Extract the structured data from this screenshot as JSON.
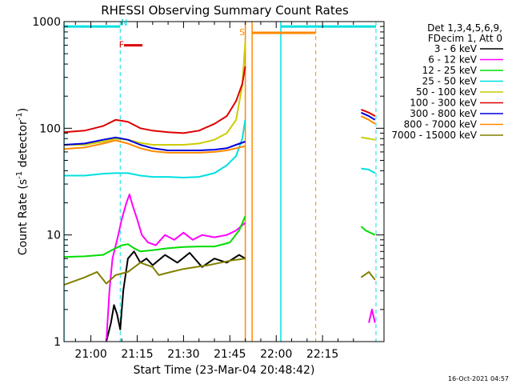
{
  "chart_data": {
    "type": "line",
    "title": "RHESSI Observing Summary Count Rates",
    "xlabel": "Start Time (23-Mar-04 20:48:42)",
    "ylabel_main": "Count Rate (s",
    "ylabel_exp1": "-1",
    "ylabel_mid": " detector",
    "ylabel_exp2": "-1",
    "ylabel_end": ")",
    "yscale": "log",
    "ylim": [
      1,
      1000
    ],
    "xlim_minutes": [
      -8.7,
      94.9
    ],
    "x_tick_minutes": [
      0,
      15,
      30,
      45,
      60,
      75
    ],
    "x_tick_labels": [
      "21:00",
      "21:15",
      "21:30",
      "21:45",
      "22:00",
      "22:15"
    ],
    "y_tick_values": [
      1,
      10,
      100,
      1000
    ],
    "y_tick_labels": [
      "1",
      "10",
      "100",
      "1000"
    ],
    "timestamp": "16-Oct-2021 04:57",
    "legend": {
      "header1": "Det 1,3,4,5,6,9,",
      "header2": "FDecim 1, Att 0",
      "entries": [
        {
          "label": "3 - 6 keV",
          "color": "#000000"
        },
        {
          "label": "6 - 12 keV",
          "color": "#ff00ff"
        },
        {
          "label": "12 - 25 keV",
          "color": "#00dd00"
        },
        {
          "label": "25 - 50 keV",
          "color": "#00e0e0"
        },
        {
          "label": "50 - 100 keV",
          "color": "#cccc00"
        },
        {
          "label": "100 - 300 keV",
          "color": "#dd0000"
        },
        {
          "label": "300 - 800 keV",
          "color": "#0000dd"
        },
        {
          "label": "800 - 7000 keV",
          "color": "#ff8800"
        },
        {
          "label": "7000 - 15000 keV",
          "color": "#808000"
        }
      ]
    },
    "flag_markers": [
      {
        "label": "N",
        "color": "#00e0e0"
      },
      {
        "label": "F",
        "color": "#dd0000"
      },
      {
        "label": "S",
        "color": "#ff8800"
      }
    ],
    "series": [
      {
        "name": "3 - 6 keV",
        "color": "#000000",
        "segments": [
          [
            [
              5,
              1
            ],
            [
              6.5,
              1.5
            ],
            [
              7.5,
              2.2
            ],
            [
              8.5,
              1.8
            ],
            [
              9.5,
              1.3
            ],
            [
              10.5,
              3
            ],
            [
              12,
              6
            ],
            [
              14,
              7
            ],
            [
              16,
              5.5
            ],
            [
              18,
              6
            ],
            [
              20,
              5.2
            ],
            [
              24,
              6.5
            ],
            [
              28,
              5.5
            ],
            [
              32,
              6.8
            ],
            [
              36,
              5
            ],
            [
              40,
              6
            ],
            [
              44,
              5.5
            ],
            [
              48,
              6.5
            ],
            [
              50,
              6
            ]
          ]
        ]
      },
      {
        "name": "6 - 12 keV",
        "color": "#ff00ff",
        "segments": [
          [
            [
              5,
              1
            ],
            [
              6,
              3
            ],
            [
              7,
              6
            ],
            [
              8.5,
              9
            ],
            [
              10,
              14
            ],
            [
              11.5,
              20
            ],
            [
              12.5,
              24
            ],
            [
              13.5,
              19
            ],
            [
              15,
              14
            ],
            [
              16.5,
              10
            ],
            [
              18.5,
              8.5
            ],
            [
              21,
              8
            ],
            [
              24,
              10
            ],
            [
              27,
              9
            ],
            [
              30,
              10.5
            ],
            [
              33,
              9
            ],
            [
              36,
              10
            ],
            [
              40,
              9.5
            ],
            [
              44,
              10
            ],
            [
              47,
              11
            ],
            [
              50,
              13
            ]
          ],
          [
            [
              90,
              1.5
            ],
            [
              91,
              2
            ],
            [
              92,
              1.5
            ]
          ]
        ]
      },
      {
        "name": "12 - 25 keV",
        "color": "#00dd00",
        "segments": [
          [
            [
              -8.7,
              6.2
            ],
            [
              -2,
              6.3
            ],
            [
              4,
              6.5
            ],
            [
              6,
              7
            ],
            [
              8,
              7.5
            ],
            [
              10,
              8
            ],
            [
              12,
              8.2
            ],
            [
              14,
              7.5
            ],
            [
              16,
              7
            ],
            [
              20,
              7.2
            ],
            [
              25,
              7.5
            ],
            [
              30,
              7.7
            ],
            [
              35,
              7.8
            ],
            [
              40,
              7.8
            ],
            [
              45,
              8.5
            ],
            [
              48,
              11
            ],
            [
              50,
              15
            ]
          ],
          [
            [
              87.5,
              12
            ],
            [
              89,
              11
            ],
            [
              92,
              10
            ]
          ]
        ]
      },
      {
        "name": "25 - 50 keV",
        "color": "#00e0e0",
        "segments": [
          [
            [
              -8.7,
              36
            ],
            [
              -2,
              36
            ],
            [
              4,
              37.5
            ],
            [
              8,
              38
            ],
            [
              12,
              38
            ],
            [
              16,
              36
            ],
            [
              20,
              35
            ],
            [
              25,
              35
            ],
            [
              30,
              34.5
            ],
            [
              35,
              35
            ],
            [
              40,
              38
            ],
            [
              44,
              45
            ],
            [
              47,
              55
            ],
            [
              49,
              80
            ],
            [
              50,
              120
            ]
          ],
          [
            [
              87.5,
              42
            ],
            [
              90,
              41
            ],
            [
              92,
              38
            ]
          ]
        ]
      },
      {
        "name": "50 - 100 keV",
        "color": "#cccc00",
        "segments": [
          [
            [
              -8.7,
              70
            ],
            [
              -2,
              70
            ],
            [
              4,
              75
            ],
            [
              8,
              80
            ],
            [
              12,
              78
            ],
            [
              16,
              73
            ],
            [
              20,
              70
            ],
            [
              25,
              70
            ],
            [
              30,
              70
            ],
            [
              35,
              72
            ],
            [
              40,
              78
            ],
            [
              44,
              90
            ],
            [
              47,
              120
            ],
            [
              49,
              250
            ],
            [
              50,
              650
            ]
          ],
          [
            [
              87.5,
              82
            ],
            [
              90,
              80
            ],
            [
              92,
              78
            ]
          ]
        ]
      },
      {
        "name": "100 - 300 keV",
        "color": "#dd0000",
        "segments": [
          [
            [
              -8.7,
              92
            ],
            [
              -2,
              95
            ],
            [
              4,
              105
            ],
            [
              8,
              120
            ],
            [
              12,
              115
            ],
            [
              16,
              100
            ],
            [
              20,
              95
            ],
            [
              25,
              92
            ],
            [
              30,
              90
            ],
            [
              35,
              95
            ],
            [
              40,
              110
            ],
            [
              44,
              130
            ],
            [
              47,
              180
            ],
            [
              49,
              260
            ],
            [
              50,
              380
            ]
          ],
          [
            [
              87.5,
              150
            ],
            [
              90,
              140
            ],
            [
              92,
              130
            ]
          ]
        ]
      },
      {
        "name": "300 - 800 keV",
        "color": "#0000dd",
        "segments": [
          [
            [
              -8.7,
              70
            ],
            [
              -2,
              72
            ],
            [
              4,
              78
            ],
            [
              8,
              82
            ],
            [
              12,
              78
            ],
            [
              16,
              70
            ],
            [
              20,
              65
            ],
            [
              25,
              62
            ],
            [
              30,
              62
            ],
            [
              35,
              62
            ],
            [
              40,
              63
            ],
            [
              44,
              65
            ],
            [
              47,
              70
            ],
            [
              50,
              75
            ]
          ],
          [
            [
              87.5,
              140
            ],
            [
              90,
              130
            ],
            [
              92,
              120
            ]
          ]
        ]
      },
      {
        "name": "800 - 7000 keV",
        "color": "#ff8800",
        "segments": [
          [
            [
              -8.7,
              64
            ],
            [
              -2,
              66
            ],
            [
              4,
              72
            ],
            [
              8,
              77
            ],
            [
              12,
              72
            ],
            [
              16,
              65
            ],
            [
              20,
              61
            ],
            [
              25,
              59
            ],
            [
              30,
              59
            ],
            [
              35,
              59
            ],
            [
              40,
              60
            ],
            [
              44,
              62
            ],
            [
              47,
              65
            ],
            [
              50,
              68
            ]
          ],
          [
            [
              87.5,
              130
            ],
            [
              90,
              120
            ],
            [
              92,
              110
            ]
          ]
        ]
      },
      {
        "name": "7000 - 15000 keV",
        "color": "#808000",
        "segments": [
          [
            [
              -8.7,
              3.4
            ],
            [
              -2,
              4
            ],
            [
              2,
              4.5
            ],
            [
              5,
              3.5
            ],
            [
              8,
              4.2
            ],
            [
              12,
              4.5
            ],
            [
              16,
              5.5
            ],
            [
              20,
              5
            ],
            [
              22,
              4.2
            ],
            [
              26,
              4.5
            ],
            [
              30,
              4.8
            ],
            [
              34,
              5
            ],
            [
              38,
              5.2
            ],
            [
              42,
              5.5
            ],
            [
              46,
              5.8
            ],
            [
              50,
              6
            ]
          ],
          [
            [
              87.5,
              4
            ],
            [
              90,
              4.5
            ],
            [
              92,
              3.8
            ]
          ]
        ]
      }
    ],
    "cyan_top_segments": [
      [
        -8.7,
        9.5,
        900
      ],
      [
        61.5,
        92.3,
        900
      ]
    ],
    "red_flag_segment": [
      10.7,
      16.7,
      600
    ],
    "orange_top_segment": [
      52,
      72.8,
      1000
    ],
    "cyan_vlines_solid": [
      -8.7,
      61.5
    ],
    "cyan_vlines_dashed": [
      9.5,
      92.3
    ],
    "orange_vlines_solid": [
      50,
      52.2
    ],
    "orange_vlines_dashed": [
      72.8
    ]
  }
}
